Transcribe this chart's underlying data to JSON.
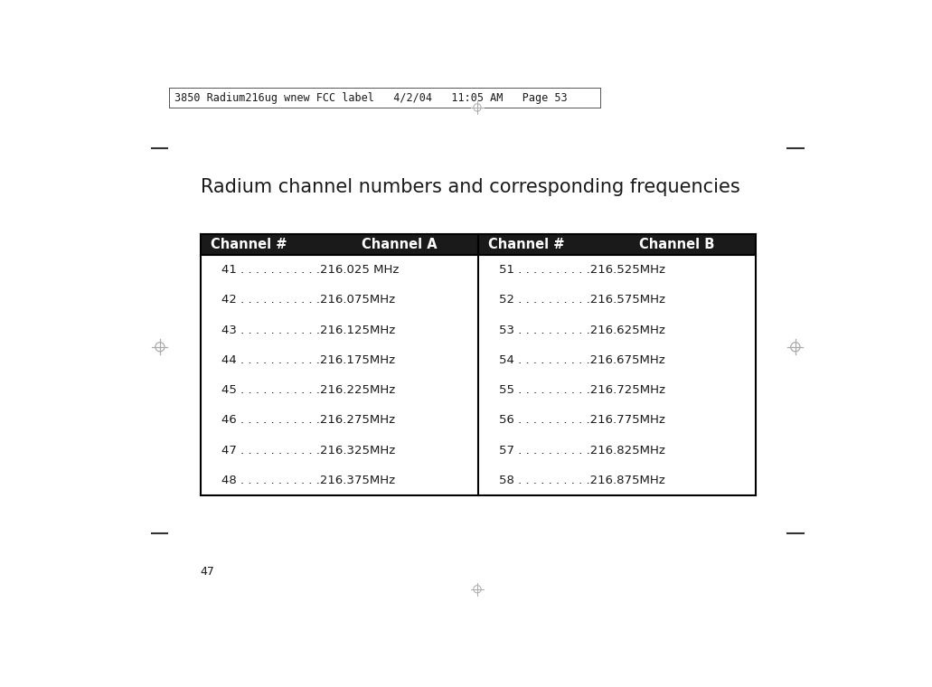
{
  "page_header": "3850 Radium216ug wnew FCC label   4/2/04   11:05 AM   Page 53",
  "title": "Radium channel numbers and corresponding frequencies",
  "header_left": [
    "Channel #",
    "Channel A"
  ],
  "header_right": [
    "Channel #",
    "Channel B"
  ],
  "rows_left": [
    [
      "41",
      " . . . . . . . . . . .",
      "216.025 MHz"
    ],
    [
      "42",
      " . . . . . . . . . . .",
      "216.075MHz"
    ],
    [
      "43",
      " . . . . . . . . . . .",
      "216.125MHz"
    ],
    [
      "44",
      " . . . . . . . . . . .",
      "216.175MHz"
    ],
    [
      "45",
      " . . . . . . . . . . .",
      "216.225MHz"
    ],
    [
      "46",
      " . . . . . . . . . . .",
      "216.275MHz"
    ],
    [
      "47",
      " . . . . . . . . . . .",
      "216.325MHz"
    ],
    [
      "48",
      " . . . . . . . . . . .",
      "216.375MHz"
    ]
  ],
  "rows_right": [
    [
      "51",
      " . . . . . . . . . .",
      "216.525MHz"
    ],
    [
      "52",
      " . . . . . . . . . .",
      "216.575MHz"
    ],
    [
      "53",
      " . . . . . . . . . .",
      "216.625MHz"
    ],
    [
      "54",
      " . . . . . . . . . .",
      "216.675MHz"
    ],
    [
      "55",
      " . . . . . . . . . .",
      "216.725MHz"
    ],
    [
      "56",
      " . . . . . . . . . .",
      "216.775MHz"
    ],
    [
      "57",
      " . . . . . . . . . .",
      "216.825MHz"
    ],
    [
      "58",
      " . . . . . . . . . .",
      "216.875MHz"
    ]
  ],
  "page_number": "47",
  "bg_color": "#ffffff",
  "header_bg": "#1a1a1a",
  "header_fg": "#ffffff",
  "table_border_color": "#000000",
  "divider_color": "#000000",
  "text_color": "#1a1a1a",
  "header_fontsize": 10.5,
  "title_fontsize": 15,
  "row_fontsize": 9.5,
  "page_header_fontsize": 8.5,
  "page_num_fontsize": 9
}
